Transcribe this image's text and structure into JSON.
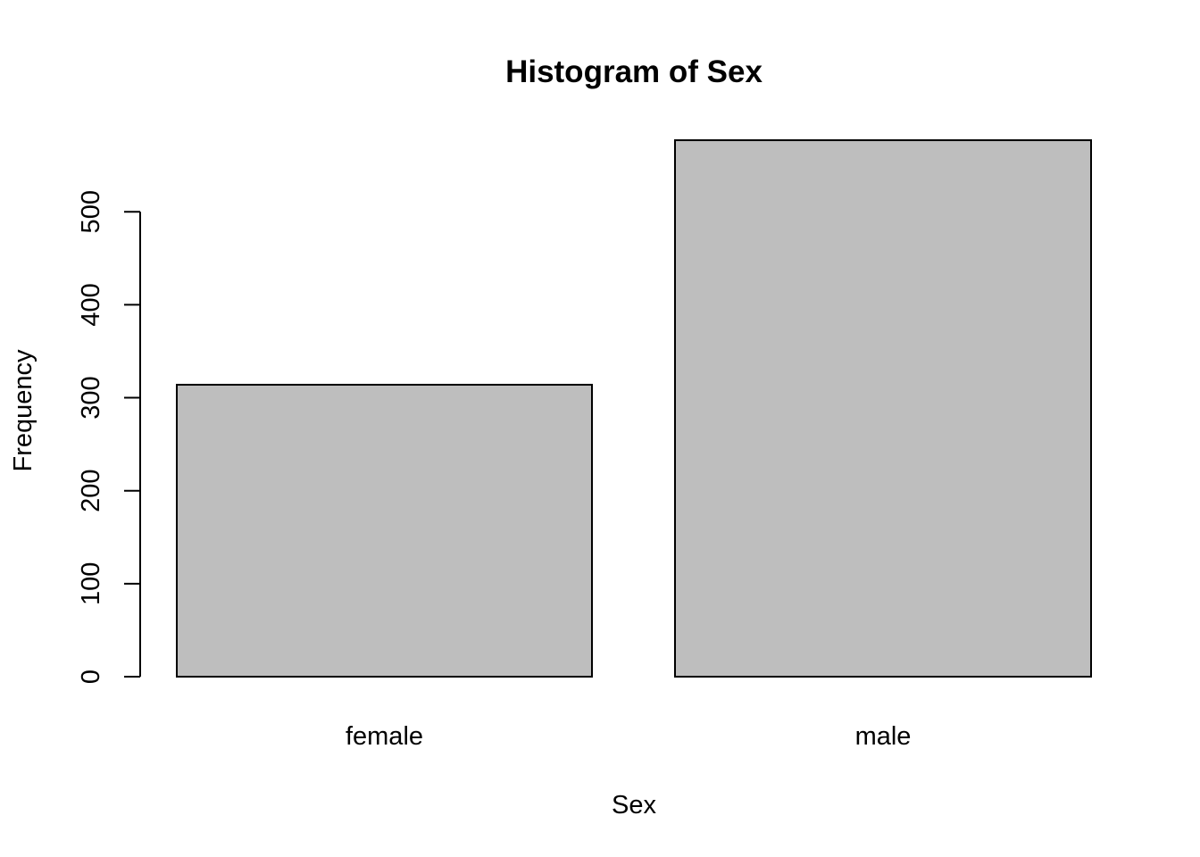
{
  "chart_data": {
    "type": "bar",
    "title": "Histogram of Sex",
    "xlabel": "Sex",
    "ylabel": "Frequency",
    "categories": [
      "female",
      "male"
    ],
    "values": [
      314,
      577
    ],
    "yticks": [
      0,
      100,
      200,
      300,
      400,
      500
    ],
    "ylim": [
      0,
      577
    ],
    "grid": false,
    "legend": "none",
    "bar_fill": "#bebebe",
    "bar_stroke": "#000000"
  }
}
